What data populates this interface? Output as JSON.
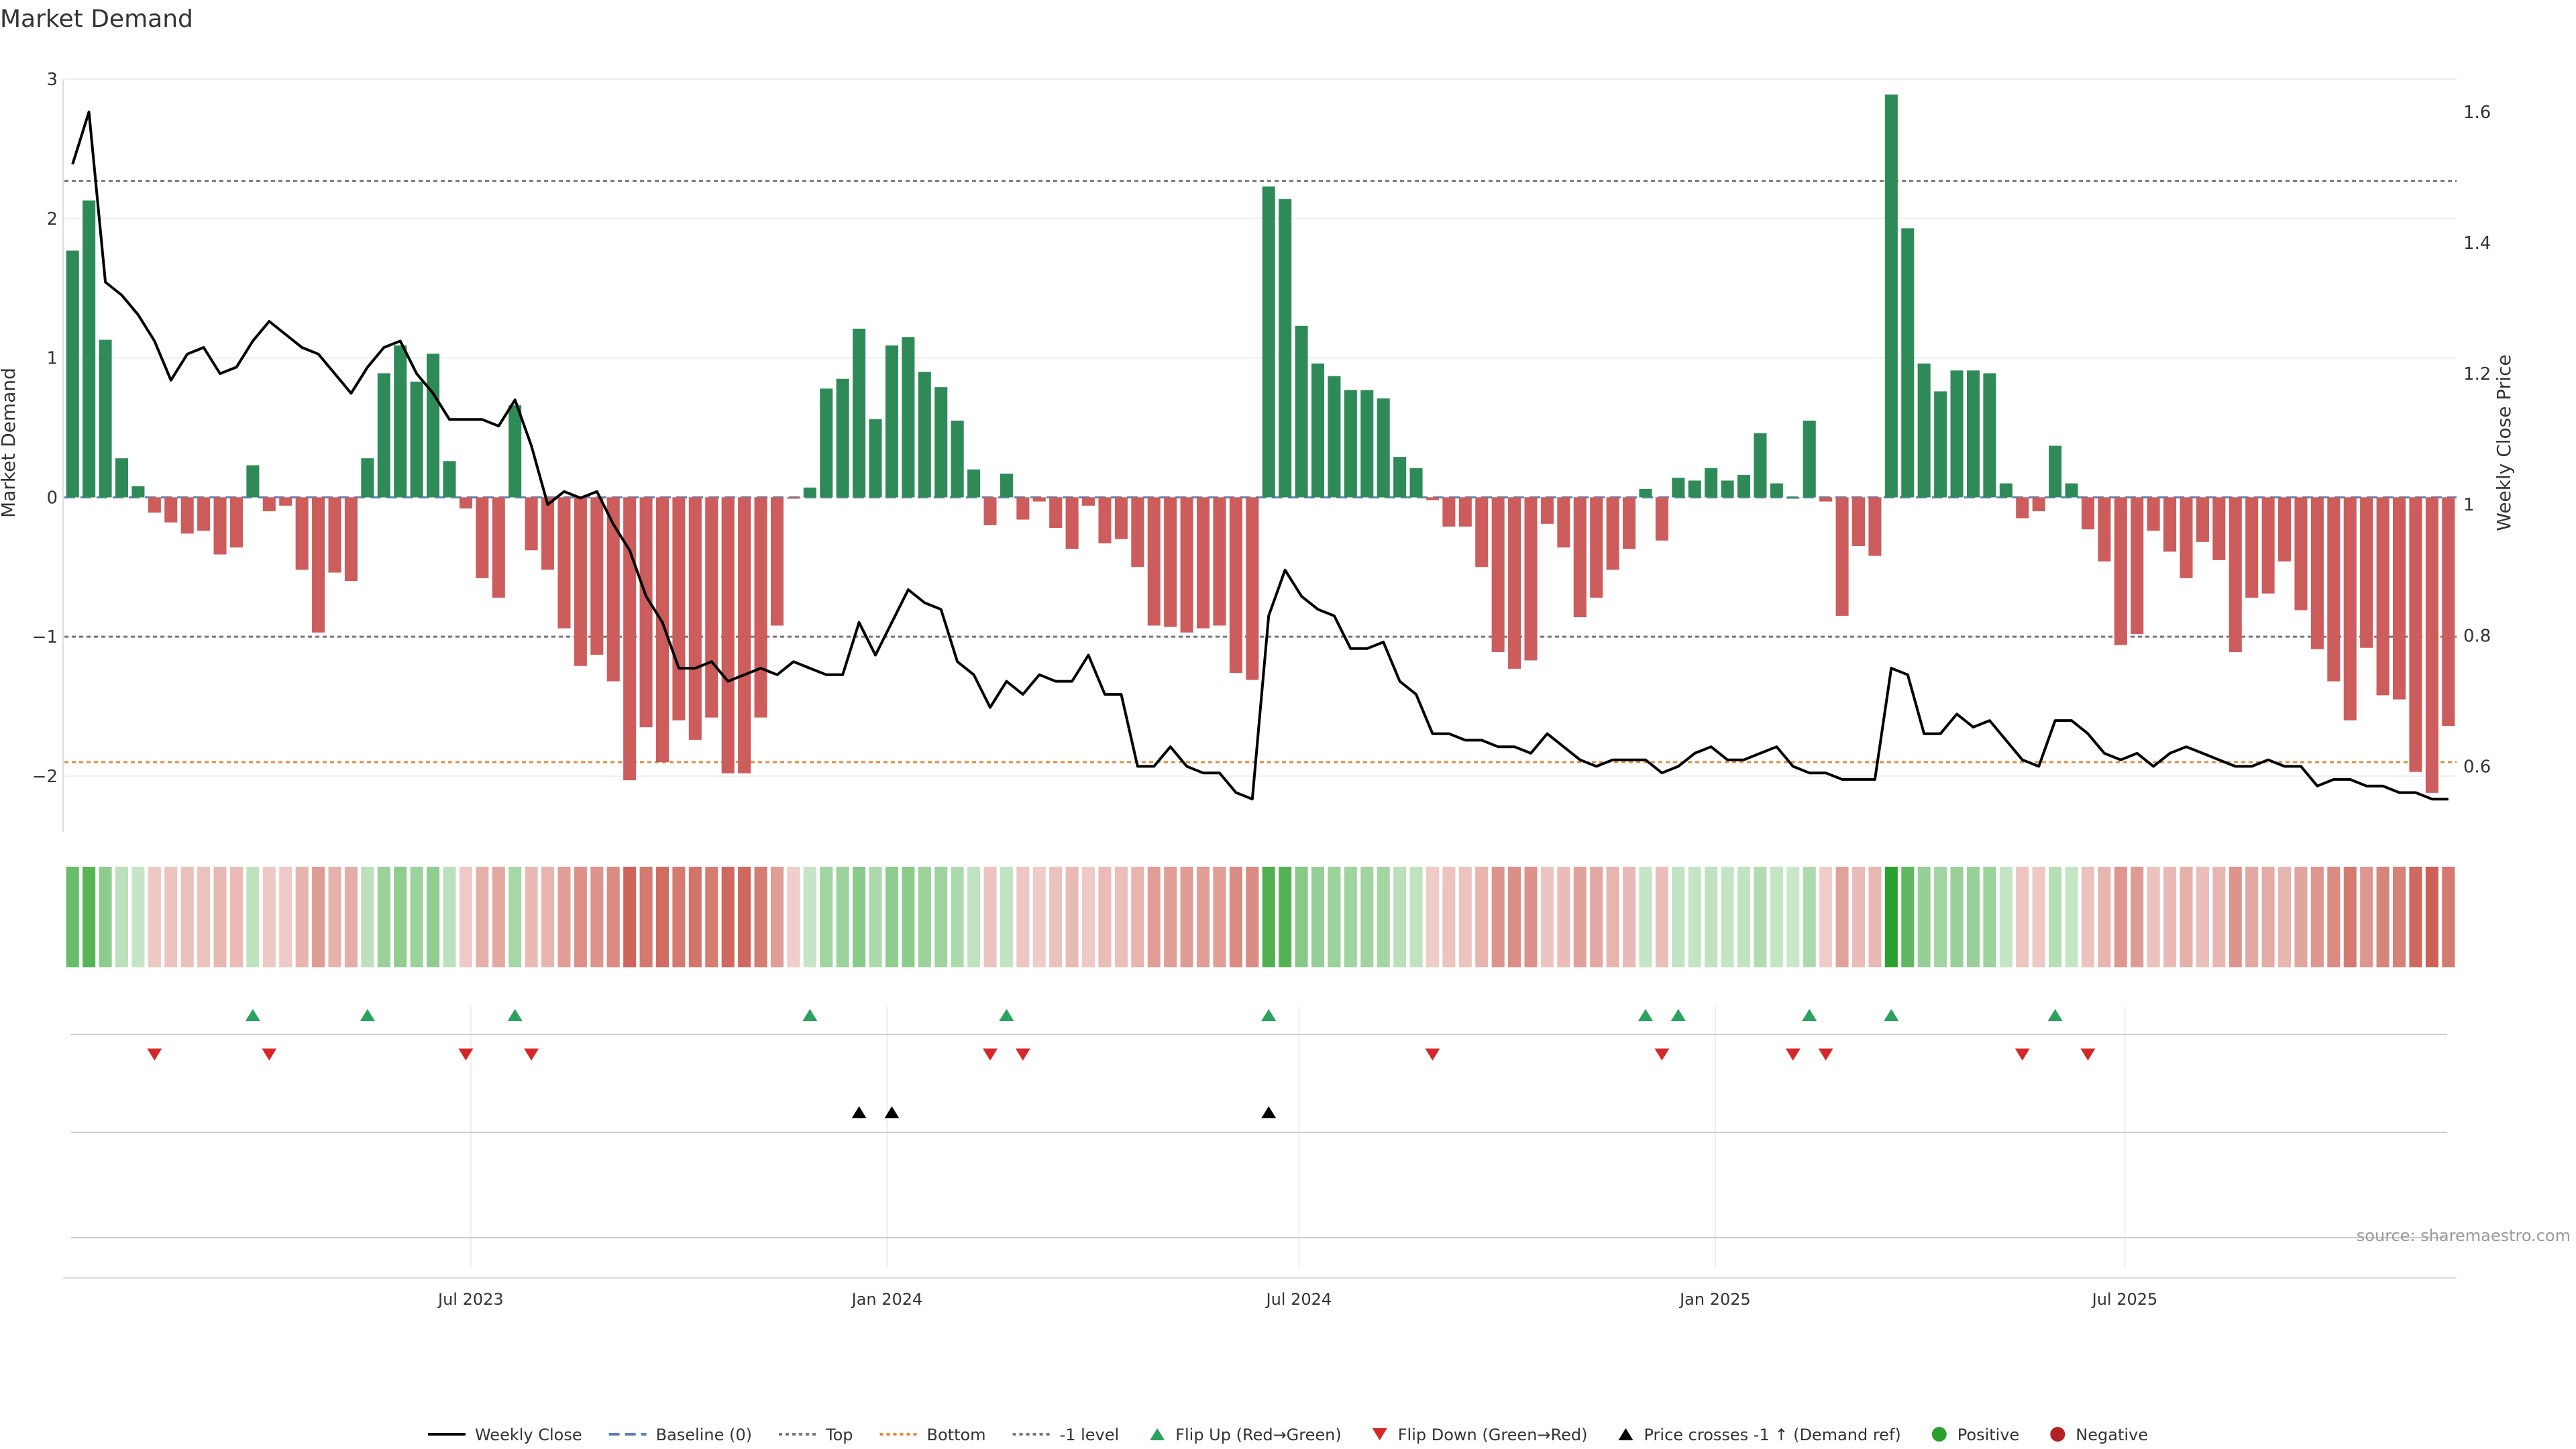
{
  "chart_data": {
    "type": "bar",
    "title": "Market Demand",
    "ylabel": "Market Demand",
    "y2label": "Weekly Close Price",
    "ylim": [
      -2.4,
      3.0
    ],
    "y2lim": [
      0.5,
      1.65
    ],
    "yticks": [
      "3",
      "2",
      "1",
      "0",
      "−1",
      "−2"
    ],
    "y2ticks": [
      "1.6",
      "1.4",
      "1.2",
      "1",
      "0.8",
      "0.6"
    ],
    "x_start": "2023-01-06",
    "x_end": "2025-11-21",
    "xticks": [
      {
        "date": "2023-07-01",
        "label": "Jul 2023"
      },
      {
        "date": "2024-01-01",
        "label": "Jan 2024"
      },
      {
        "date": "2024-07-01",
        "label": "Jul 2024"
      },
      {
        "date": "2025-01-01",
        "label": "Jan 2025"
      },
      {
        "date": "2025-07-01",
        "label": "Jul 2025"
      }
    ],
    "reference_lines": {
      "top": 2.27,
      "bottom": -1.9,
      "minus_one": -1,
      "baseline": 0
    },
    "demand": [
      1.77,
      2.13,
      1.13,
      0.28,
      0.08,
      -0.11,
      -0.18,
      -0.26,
      -0.24,
      -0.41,
      -0.36,
      0.23,
      -0.1,
      -0.06,
      -0.52,
      -0.97,
      -0.54,
      -0.6,
      0.28,
      0.89,
      1.09,
      0.83,
      1.03,
      0.26,
      -0.08,
      -0.58,
      -0.72,
      0.66,
      -0.38,
      -0.52,
      -0.94,
      -1.21,
      -1.13,
      -1.32,
      -2.03,
      -1.65,
      -1.9,
      -1.6,
      -1.74,
      -1.58,
      -1.98,
      -1.98,
      -1.58,
      -0.92,
      -0.01,
      0.07,
      0.78,
      0.85,
      1.21,
      0.56,
      1.09,
      1.15,
      0.9,
      0.79,
      0.55,
      0.2,
      -0.2,
      0.17,
      -0.16,
      -0.03,
      -0.22,
      -0.37,
      -0.06,
      -0.33,
      -0.3,
      -0.5,
      -0.92,
      -0.93,
      -0.97,
      -0.94,
      -0.92,
      -1.26,
      -1.31,
      2.23,
      2.14,
      1.23,
      0.96,
      0.87,
      0.77,
      0.77,
      0.71,
      0.29,
      0.21,
      -0.02,
      -0.21,
      -0.21,
      -0.5,
      -1.11,
      -1.23,
      -1.17,
      -0.19,
      -0.36,
      -0.86,
      -0.72,
      -0.52,
      -0.37,
      0.06,
      -0.31,
      0.14,
      0.12,
      0.21,
      0.12,
      0.16,
      0.46,
      0.1,
      0.0,
      0.55,
      -0.03,
      -0.85,
      -0.35,
      -0.42,
      2.89,
      1.93,
      0.96,
      0.76,
      0.91,
      0.91,
      0.89,
      0.1,
      -0.15,
      -0.1,
      0.37,
      0.1,
      -0.23,
      -0.46,
      -1.06,
      -0.98,
      -0.24,
      -0.39,
      -0.58,
      -0.32,
      -0.45,
      -1.11,
      -0.72,
      -0.69,
      -0.46,
      -0.81,
      -1.09,
      -1.32,
      -1.6,
      -1.08,
      -1.42,
      -1.45,
      -1.97,
      -2.12,
      -1.64
    ],
    "price": [
      1.52,
      1.6,
      1.34,
      1.32,
      1.29,
      1.25,
      1.19,
      1.23,
      1.24,
      1.2,
      1.21,
      1.25,
      1.28,
      1.26,
      1.24,
      1.23,
      1.2,
      1.17,
      1.21,
      1.24,
      1.25,
      1.2,
      1.17,
      1.13,
      1.13,
      1.13,
      1.12,
      1.16,
      1.09,
      1,
      1.02,
      1.01,
      1.02,
      0.97,
      0.93,
      0.86,
      0.82,
      0.75,
      0.75,
      0.76,
      0.73,
      0.74,
      0.75,
      0.74,
      0.76,
      0.75,
      0.74,
      0.74,
      0.82,
      0.77,
      0.82,
      0.87,
      0.85,
      0.84,
      0.76,
      0.74,
      0.69,
      0.73,
      0.71,
      0.74,
      0.73,
      0.73,
      0.77,
      0.71,
      0.71,
      0.6,
      0.6,
      0.63,
      0.6,
      0.59,
      0.59,
      0.56,
      0.55,
      0.83,
      0.9,
      0.86,
      0.84,
      0.83,
      0.78,
      0.78,
      0.79,
      0.73,
      0.71,
      0.65,
      0.65,
      0.64,
      0.64,
      0.63,
      0.63,
      0.62,
      0.65,
      0.63,
      0.61,
      0.6,
      0.61,
      0.61,
      0.61,
      0.59,
      0.6,
      0.62,
      0.63,
      0.61,
      0.61,
      0.62,
      0.63,
      0.6,
      0.59,
      0.59,
      0.58,
      0.58,
      0.58,
      0.75,
      0.74,
      0.65,
      0.65,
      0.68,
      0.66,
      0.67,
      0.64,
      0.61,
      0.6,
      0.67,
      0.67,
      0.65,
      0.62,
      0.61,
      0.62,
      0.6,
      0.62,
      0.63,
      0.62,
      0.61,
      0.6,
      0.6,
      0.61,
      0.6,
      0.6,
      0.57,
      0.58,
      0.58,
      0.57,
      0.57,
      0.56,
      0.56,
      0.55,
      0.55
    ],
    "flip_up_idx": [
      11,
      18,
      27,
      45,
      57,
      73,
      96,
      98,
      106,
      111,
      121
    ],
    "flip_down_idx": [
      5,
      12,
      24,
      28,
      56,
      58,
      83,
      97,
      105,
      107,
      119,
      123
    ],
    "price_cross_idx": [
      48,
      50,
      73
    ],
    "legend_position": "bottom-center",
    "legend": [
      {
        "label": "Weekly Close",
        "kind": "line",
        "color": "#000000"
      },
      {
        "label": "Baseline (0)",
        "kind": "dash",
        "color": "#5b7fb0"
      },
      {
        "label": "Top",
        "kind": "dot",
        "color": "#777777"
      },
      {
        "label": "Bottom",
        "kind": "dot",
        "color": "#e08a3a"
      },
      {
        "label": "-1 level",
        "kind": "dot",
        "color": "#777777"
      },
      {
        "label": "Flip Up (Red→Green)",
        "kind": "tri-up",
        "color": "#2ca25f"
      },
      {
        "label": "Flip Down (Green→Red)",
        "kind": "tri-down",
        "color": "#d62728"
      },
      {
        "label": "Price crosses -1 ↑ (Demand ref)",
        "kind": "tri-up",
        "color": "#000000"
      },
      {
        "label": "Positive",
        "kind": "dot-marker",
        "color": "#2ca02c"
      },
      {
        "label": "Negative",
        "kind": "dot-marker",
        "color": "#b22222"
      }
    ],
    "source": "source: sharemaestro.com",
    "colors": {
      "positive_bar": "#2e8b57",
      "negative_bar": "#cd5c5c",
      "price_line": "#000000",
      "heat_positive": "#2ca02c",
      "heat_negative": "#c0392b"
    }
  }
}
